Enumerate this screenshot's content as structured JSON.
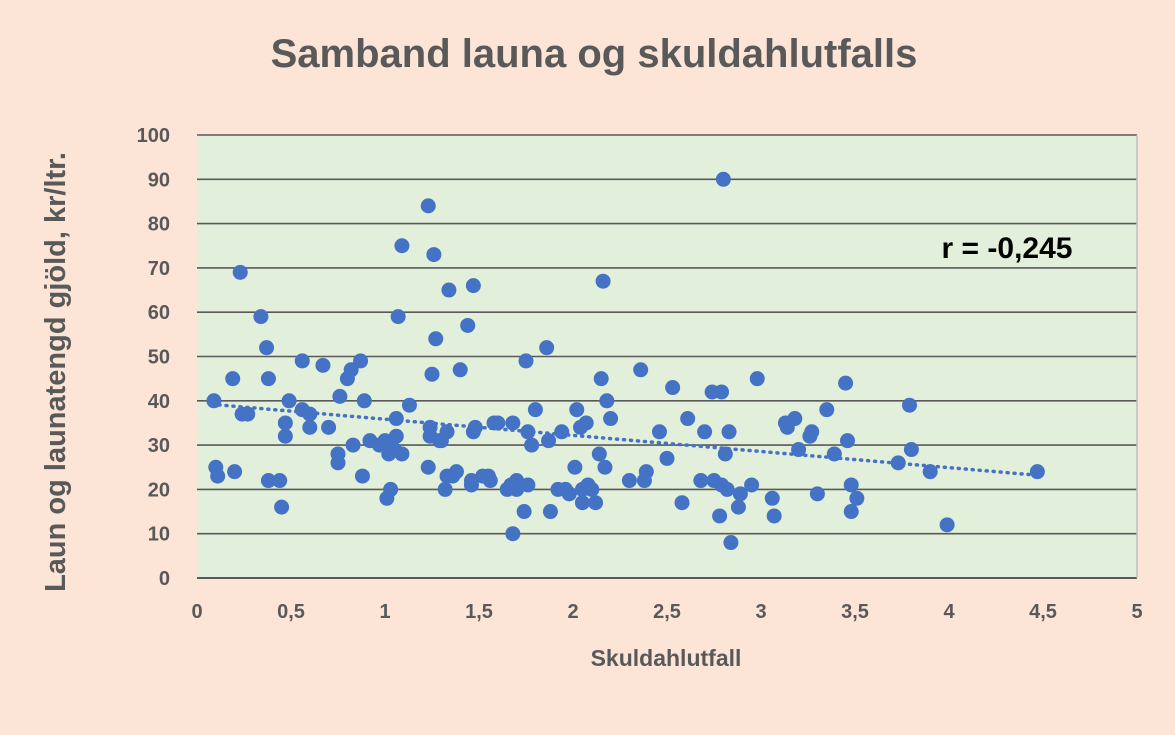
{
  "chart_data": {
    "type": "scatter",
    "title": "Samband launa og skuldahlutfalls",
    "xlabel": "Skuldahlutfall",
    "ylabel": "Laun og launatengd gjöld, kr/ltr.",
    "xlim": [
      0,
      5
    ],
    "ylim": [
      0,
      100
    ],
    "x_ticks": [
      "0",
      "0,5",
      "1",
      "1,5",
      "2",
      "2,5",
      "3",
      "3,5",
      "4",
      "4,5",
      "5"
    ],
    "y_ticks": [
      "0",
      "10",
      "20",
      "30",
      "40",
      "50",
      "60",
      "70",
      "80",
      "90",
      "100"
    ],
    "x_tick_values": [
      0,
      0.5,
      1,
      1.5,
      2,
      2.5,
      3,
      3.5,
      4,
      4.5,
      5
    ],
    "y_tick_values": [
      0,
      10,
      20,
      30,
      40,
      50,
      60,
      70,
      80,
      90,
      100
    ],
    "grid": "horizontal",
    "annotation": "r = -0,245",
    "trendline": {
      "style": "dotted",
      "x": [
        0.08,
        4.47
      ],
      "y": [
        39.2,
        23.2
      ]
    },
    "colors": {
      "background": "#fce4d6",
      "plot_area": "#e2efda",
      "point": "#4472c4",
      "grid": "#595959",
      "text": "#595959"
    },
    "series": [
      {
        "points": [
          [
            0.09,
            40
          ],
          [
            0.1,
            25
          ],
          [
            0.11,
            23
          ],
          [
            0.19,
            45
          ],
          [
            0.2,
            24
          ],
          [
            0.23,
            69
          ],
          [
            0.24,
            37
          ],
          [
            0.27,
            37
          ],
          [
            0.34,
            59
          ],
          [
            0.37,
            52
          ],
          [
            0.38,
            45
          ],
          [
            0.38,
            22
          ],
          [
            0.44,
            22
          ],
          [
            0.45,
            16
          ],
          [
            0.47,
            35
          ],
          [
            0.47,
            32
          ],
          [
            0.49,
            40
          ],
          [
            0.56,
            49
          ],
          [
            0.56,
            38
          ],
          [
            0.6,
            37
          ],
          [
            0.6,
            34
          ],
          [
            0.67,
            48
          ],
          [
            0.7,
            34
          ],
          [
            0.75,
            28
          ],
          [
            0.75,
            26
          ],
          [
            0.76,
            41
          ],
          [
            0.8,
            45
          ],
          [
            0.82,
            47
          ],
          [
            0.83,
            30
          ],
          [
            0.87,
            49
          ],
          [
            0.88,
            23
          ],
          [
            0.89,
            40
          ],
          [
            0.92,
            31
          ],
          [
            0.97,
            30
          ],
          [
            1.0,
            31
          ],
          [
            1.01,
            18
          ],
          [
            1.02,
            28
          ],
          [
            1.03,
            20
          ],
          [
            1.05,
            29
          ],
          [
            1.06,
            32
          ],
          [
            1.06,
            36
          ],
          [
            1.07,
            59
          ],
          [
            1.09,
            28
          ],
          [
            1.09,
            75
          ],
          [
            1.13,
            39
          ],
          [
            1.23,
            84
          ],
          [
            1.23,
            25
          ],
          [
            1.24,
            34
          ],
          [
            1.24,
            32
          ],
          [
            1.25,
            46
          ],
          [
            1.26,
            73
          ],
          [
            1.27,
            54
          ],
          [
            1.29,
            31
          ],
          [
            1.3,
            31
          ],
          [
            1.32,
            20
          ],
          [
            1.33,
            23
          ],
          [
            1.33,
            33
          ],
          [
            1.34,
            65
          ],
          [
            1.36,
            23
          ],
          [
            1.38,
            24
          ],
          [
            1.4,
            47
          ],
          [
            1.44,
            57
          ],
          [
            1.46,
            22
          ],
          [
            1.46,
            21
          ],
          [
            1.47,
            66
          ],
          [
            1.47,
            33
          ],
          [
            1.48,
            34
          ],
          [
            1.52,
            23
          ],
          [
            1.55,
            23
          ],
          [
            1.56,
            22
          ],
          [
            1.58,
            35
          ],
          [
            1.6,
            35
          ],
          [
            1.65,
            20
          ],
          [
            1.67,
            21
          ],
          [
            1.68,
            10
          ],
          [
            1.68,
            35
          ],
          [
            1.7,
            22
          ],
          [
            1.7,
            20
          ],
          [
            1.74,
            15
          ],
          [
            1.75,
            49
          ],
          [
            1.76,
            21
          ],
          [
            1.76,
            33
          ],
          [
            1.78,
            30
          ],
          [
            1.8,
            38
          ],
          [
            1.86,
            52
          ],
          [
            1.87,
            31
          ],
          [
            1.88,
            15
          ],
          [
            1.92,
            20
          ],
          [
            1.94,
            33
          ],
          [
            1.96,
            20
          ],
          [
            1.98,
            19
          ],
          [
            2.01,
            25
          ],
          [
            2.02,
            38
          ],
          [
            2.04,
            34
          ],
          [
            2.05,
            17
          ],
          [
            2.05,
            20
          ],
          [
            2.07,
            35
          ],
          [
            2.08,
            21
          ],
          [
            2.1,
            20
          ],
          [
            2.12,
            17
          ],
          [
            2.14,
            28
          ],
          [
            2.15,
            45
          ],
          [
            2.16,
            67
          ],
          [
            2.17,
            25
          ],
          [
            2.18,
            40
          ],
          [
            2.2,
            36
          ],
          [
            2.3,
            22
          ],
          [
            2.36,
            47
          ],
          [
            2.38,
            22
          ],
          [
            2.39,
            24
          ],
          [
            2.46,
            33
          ],
          [
            2.5,
            27
          ],
          [
            2.53,
            43
          ],
          [
            2.58,
            17
          ],
          [
            2.61,
            36
          ],
          [
            2.68,
            22
          ],
          [
            2.7,
            33
          ],
          [
            2.74,
            42
          ],
          [
            2.75,
            22
          ],
          [
            2.78,
            14
          ],
          [
            2.79,
            42
          ],
          [
            2.79,
            21
          ],
          [
            2.8,
            90
          ],
          [
            2.81,
            28
          ],
          [
            2.82,
            20
          ],
          [
            2.83,
            33
          ],
          [
            2.84,
            8
          ],
          [
            2.88,
            16
          ],
          [
            2.89,
            19
          ],
          [
            2.95,
            21
          ],
          [
            2.98,
            45
          ],
          [
            3.06,
            18
          ],
          [
            3.07,
            14
          ],
          [
            3.13,
            35
          ],
          [
            3.14,
            34
          ],
          [
            3.18,
            36
          ],
          [
            3.2,
            29
          ],
          [
            3.26,
            32
          ],
          [
            3.27,
            33
          ],
          [
            3.3,
            19
          ],
          [
            3.35,
            38
          ],
          [
            3.39,
            28
          ],
          [
            3.45,
            44
          ],
          [
            3.46,
            31
          ],
          [
            3.48,
            21
          ],
          [
            3.48,
            15
          ],
          [
            3.51,
            18
          ],
          [
            3.73,
            26
          ],
          [
            3.79,
            39
          ],
          [
            3.8,
            29
          ],
          [
            3.9,
            24
          ],
          [
            3.99,
            12
          ],
          [
            4.47,
            24
          ]
        ]
      }
    ]
  }
}
